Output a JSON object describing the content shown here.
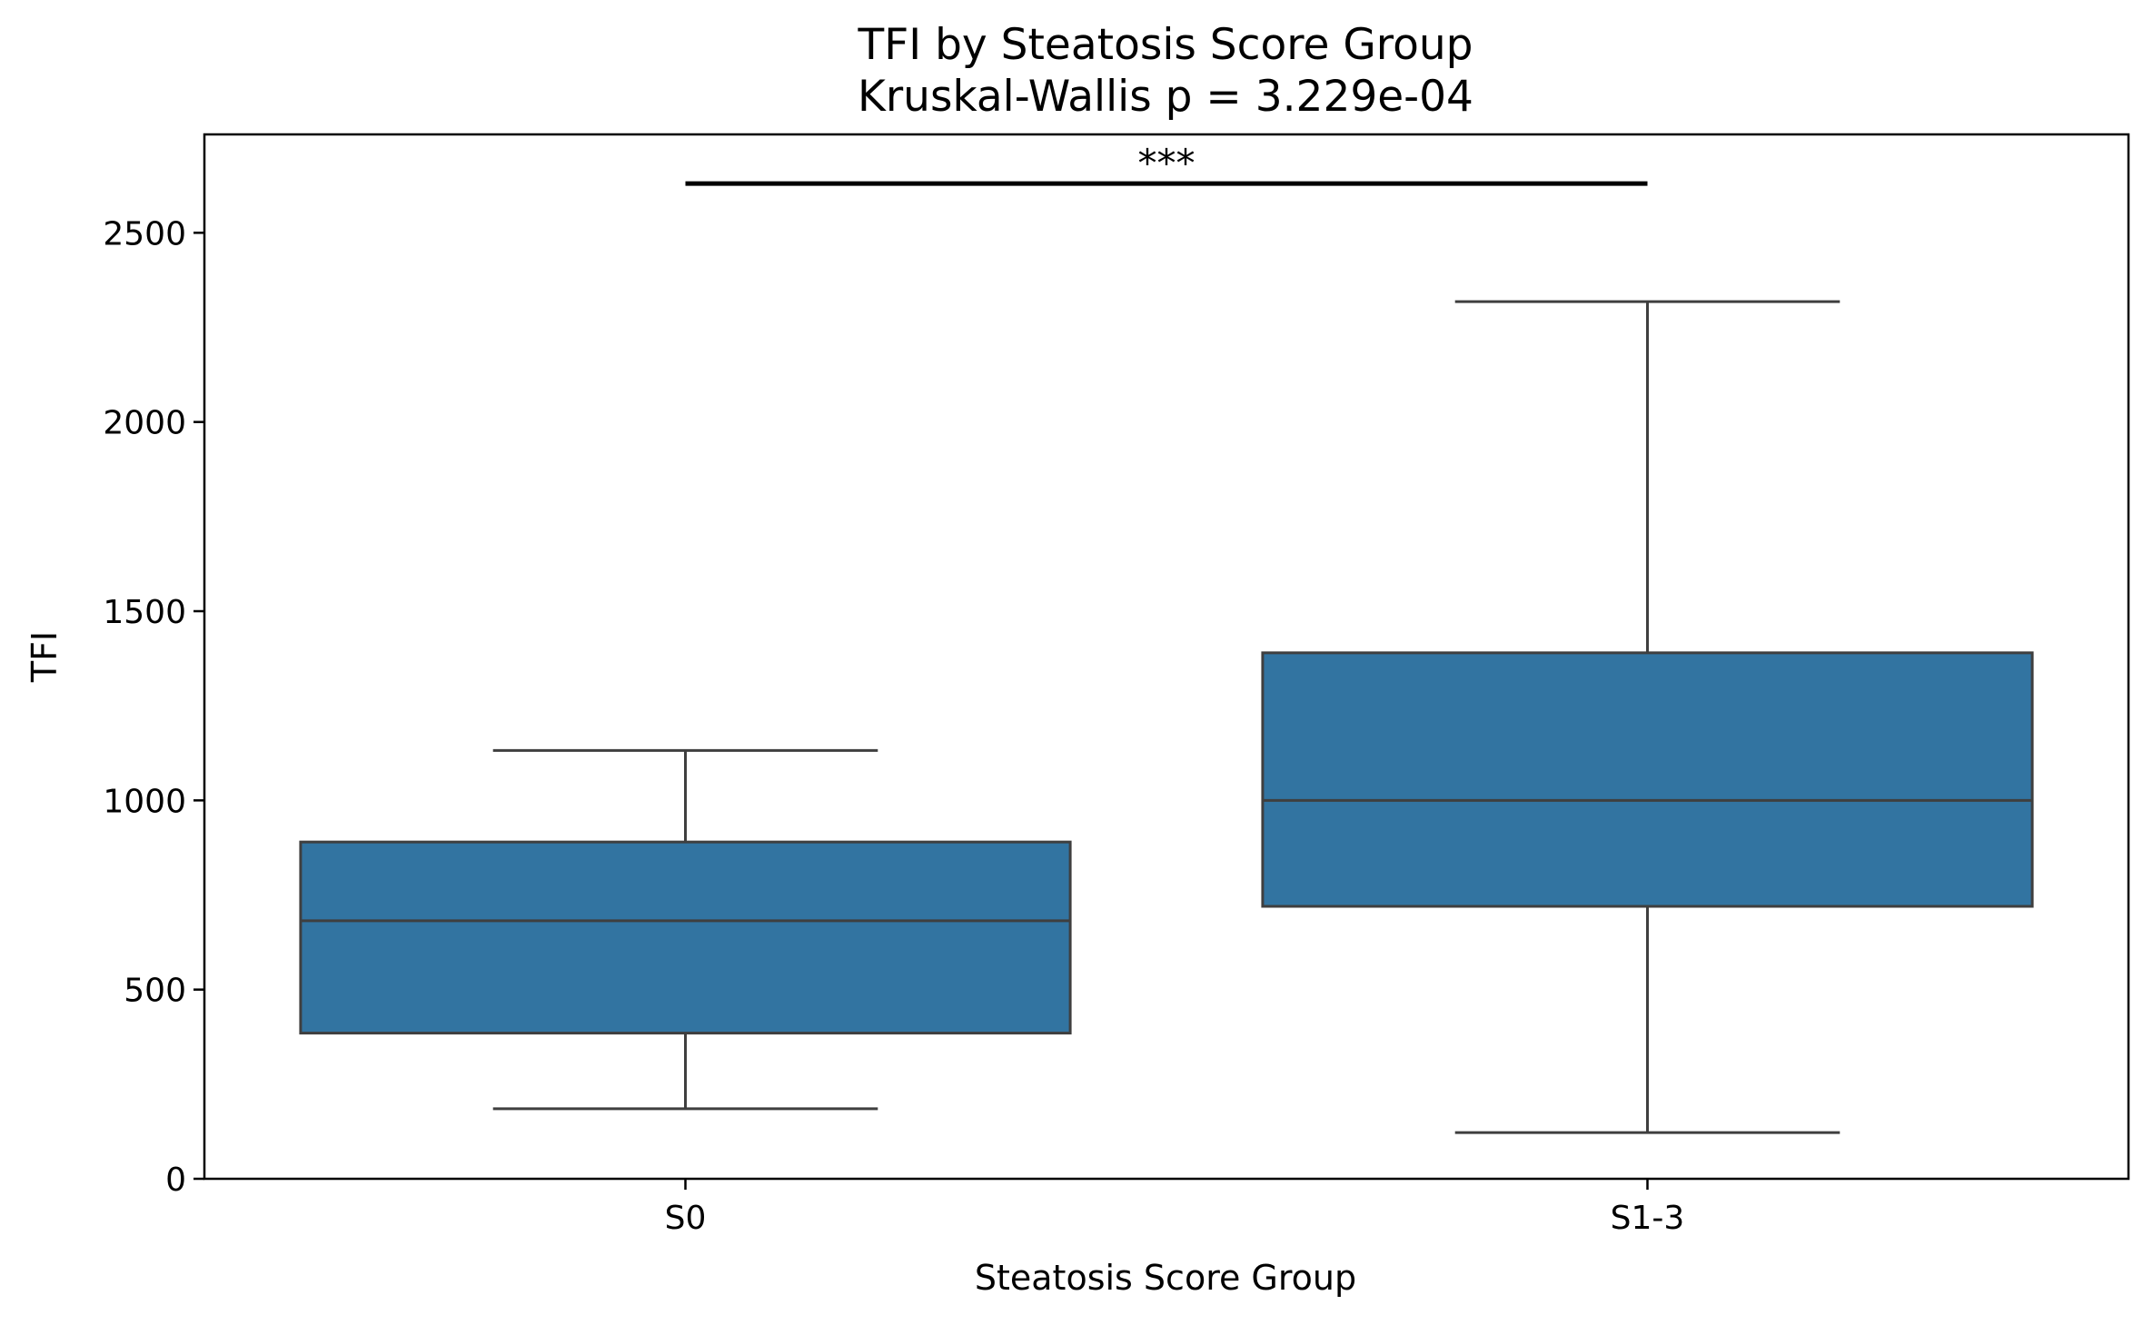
{
  "chart_data": {
    "type": "box",
    "title": "TFI by Steatosis Score Group",
    "subtitle": "Kruskal-Wallis p = 3.229e-04",
    "xlabel": "Steatosis Score Group",
    "ylabel": "TFI",
    "ylim": [
      0,
      2760
    ],
    "yticks": [
      0,
      500,
      1000,
      1500,
      2000,
      2500
    ],
    "grid": false,
    "box_color": "#3274a1",
    "edge_color": "#3f3f3f",
    "categories": [
      "S0",
      "S1-3"
    ],
    "boxes": [
      {
        "category": "S0",
        "whisker_low": 185,
        "q1": 385,
        "median": 682,
        "q3": 890,
        "whisker_high": 1132
      },
      {
        "category": "S1-3",
        "whisker_low": 122,
        "q1": 720,
        "median": 1000,
        "q3": 1390,
        "whisker_high": 2318
      }
    ],
    "significance": {
      "label": "***",
      "y": 2630,
      "from": "S0",
      "to": "S1-3"
    }
  }
}
